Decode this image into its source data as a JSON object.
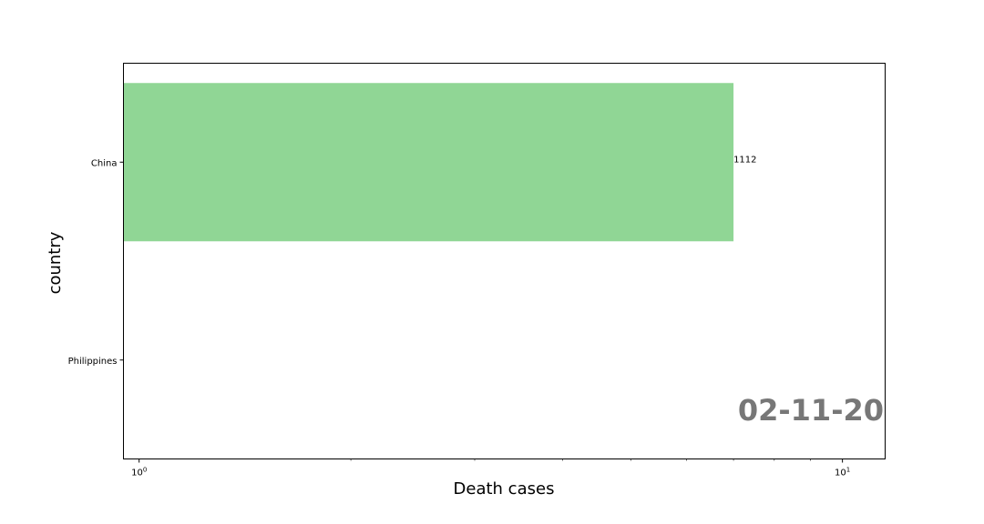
{
  "chart_data": {
    "type": "bar",
    "orientation": "horizontal",
    "xscale": "log",
    "xlim": [
      0.95,
      11.5
    ],
    "xlabel": "Death cases",
    "ylabel": "country",
    "categories": [
      "China",
      "Philippines"
    ],
    "values": [
      1112,
      1
    ],
    "bar_lengths": [
      7.0,
      0
    ],
    "data_labels": [
      "1112",
      ""
    ],
    "xticks": [
      {
        "value": 1,
        "base": "10",
        "exp": "0"
      },
      {
        "value": 10,
        "base": "10",
        "exp": "1"
      }
    ],
    "bar_color": "#90d695",
    "annotation": "02-11-20",
    "annotation_color": "#777777",
    "grid": false,
    "legend": "none"
  }
}
